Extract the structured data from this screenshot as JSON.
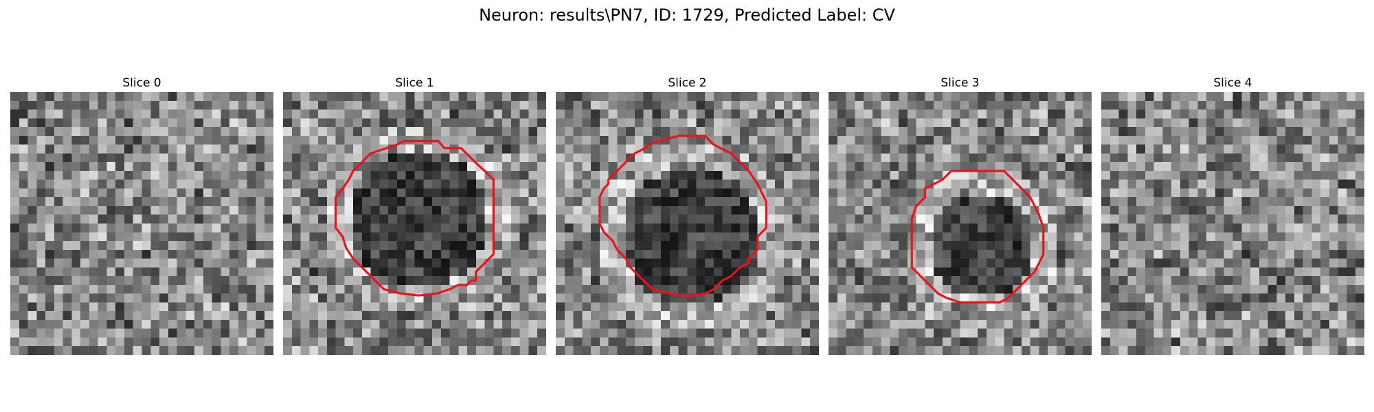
{
  "figure": {
    "title": "Neuron: results\\PN7, ID: 1729, Predicted Label: CV"
  },
  "colors": {
    "contour": "#e8141b",
    "background": "#ffffff"
  },
  "panels": [
    {
      "title": "Slice 0",
      "seed": 11,
      "has_contour": false,
      "dark_blob": null
    },
    {
      "title": "Slice 1",
      "seed": 23,
      "has_contour": true,
      "dark_blob": {
        "cx": 15,
        "cy": 14,
        "r": 8
      },
      "contour": [
        [
          13.8,
          5.6
        ],
        [
          17.7,
          5.6
        ],
        [
          18.4,
          6.4
        ],
        [
          20.3,
          6.4
        ],
        [
          21.1,
          7.2
        ],
        [
          22.0,
          8.1
        ],
        [
          23.0,
          9.0
        ],
        [
          24.0,
          10.0
        ],
        [
          24.0,
          12.0
        ],
        [
          24.0,
          14.0
        ],
        [
          24.0,
          16.0
        ],
        [
          24.0,
          18.5
        ],
        [
          23.0,
          19.5
        ],
        [
          22.0,
          20.5
        ],
        [
          22.0,
          21.5
        ],
        [
          21.5,
          21.5
        ],
        [
          21.0,
          22.0
        ],
        [
          20.0,
          22.0
        ],
        [
          19.0,
          22.5
        ],
        [
          17.5,
          23.0
        ],
        [
          15.5,
          23.2
        ],
        [
          13.5,
          23.0
        ],
        [
          11.5,
          22.5
        ],
        [
          10.0,
          21.0
        ],
        [
          9.0,
          20.0
        ],
        [
          8.0,
          19.0
        ],
        [
          7.2,
          17.8
        ],
        [
          6.8,
          16.5
        ],
        [
          6.0,
          15.5
        ],
        [
          6.0,
          13.5
        ],
        [
          6.0,
          12.0
        ],
        [
          6.8,
          11.0
        ],
        [
          7.5,
          10.0
        ],
        [
          8.0,
          9.0
        ],
        [
          9.0,
          8.0
        ],
        [
          10.0,
          7.0
        ],
        [
          11.5,
          6.5
        ],
        [
          13.0,
          6.0
        ],
        [
          13.8,
          5.6
        ]
      ]
    },
    {
      "title": "Slice 2",
      "seed": 37,
      "has_contour": true,
      "dark_blob": {
        "cx": 15,
        "cy": 16,
        "r": 8
      },
      "contour": [
        [
          11.0,
          5.8
        ],
        [
          14.0,
          5.0
        ],
        [
          17.0,
          5.0
        ],
        [
          17.3,
          5.3
        ],
        [
          18.0,
          6.0
        ],
        [
          19.0,
          6.5
        ],
        [
          20.0,
          7.0
        ],
        [
          21.0,
          8.0
        ],
        [
          22.0,
          9.0
        ],
        [
          23.0,
          10.5
        ],
        [
          23.5,
          11.5
        ],
        [
          24.0,
          12.5
        ],
        [
          24.0,
          14.0
        ],
        [
          24.0,
          15.5
        ],
        [
          23.0,
          16.5
        ],
        [
          23.0,
          18.0
        ],
        [
          22.0,
          19.0
        ],
        [
          22.0,
          19.5
        ],
        [
          21.0,
          20.0
        ],
        [
          20.0,
          21.0
        ],
        [
          19.0,
          21.5
        ],
        [
          18.0,
          22.5
        ],
        [
          17.0,
          23.0
        ],
        [
          15.0,
          23.3
        ],
        [
          13.0,
          23.0
        ],
        [
          11.0,
          22.5
        ],
        [
          10.0,
          21.5
        ],
        [
          8.5,
          20.0
        ],
        [
          8.0,
          19.0
        ],
        [
          7.0,
          18.0
        ],
        [
          6.5,
          17.0
        ],
        [
          5.5,
          16.0
        ],
        [
          5.0,
          15.0
        ],
        [
          5.0,
          13.5
        ],
        [
          5.0,
          12.0
        ],
        [
          5.5,
          11.0
        ],
        [
          6.0,
          10.5
        ],
        [
          6.0,
          10.0
        ],
        [
          7.0,
          9.0
        ],
        [
          8.0,
          8.0
        ],
        [
          9.0,
          7.0
        ],
        [
          10.0,
          6.5
        ],
        [
          11.0,
          5.8
        ]
      ]
    },
    {
      "title": "Slice 3",
      "seed": 53,
      "has_contour": true,
      "dark_blob": {
        "cx": 17,
        "cy": 17,
        "r": 6
      },
      "contour": [
        [
          14.0,
          9.0
        ],
        [
          20.0,
          9.0
        ],
        [
          21.0,
          10.0
        ],
        [
          22.0,
          11.0
        ],
        [
          23.0,
          12.0
        ],
        [
          23.5,
          13.0
        ],
        [
          24.0,
          14.0
        ],
        [
          24.5,
          15.5
        ],
        [
          24.5,
          17.0
        ],
        [
          24.5,
          18.5
        ],
        [
          24.0,
          19.5
        ],
        [
          23.5,
          20.5
        ],
        [
          22.5,
          21.5
        ],
        [
          21.5,
          22.5
        ],
        [
          20.5,
          23.5
        ],
        [
          19.5,
          24.0
        ],
        [
          18.0,
          24.0
        ],
        [
          16.5,
          24.0
        ],
        [
          15.0,
          24.0
        ],
        [
          13.5,
          23.5
        ],
        [
          12.5,
          23.0
        ],
        [
          11.5,
          22.0
        ],
        [
          10.5,
          21.0
        ],
        [
          9.5,
          20.0
        ],
        [
          9.5,
          19.0
        ],
        [
          9.5,
          17.5
        ],
        [
          9.5,
          16.0
        ],
        [
          9.5,
          14.5
        ],
        [
          10.0,
          13.0
        ],
        [
          11.0,
          12.0
        ],
        [
          11.0,
          11.0
        ],
        [
          12.0,
          10.5
        ],
        [
          13.0,
          10.0
        ],
        [
          14.0,
          9.0
        ]
      ]
    },
    {
      "title": "Slice 4",
      "seed": 71,
      "has_contour": false,
      "dark_blob": null
    }
  ]
}
